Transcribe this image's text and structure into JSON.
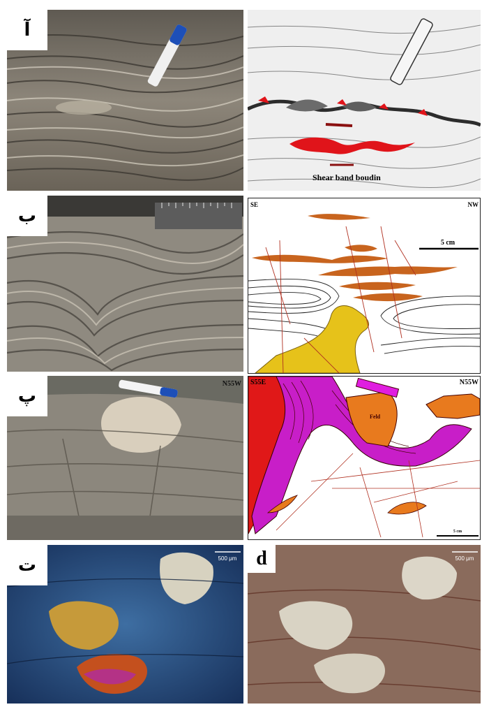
{
  "figure": {
    "rows": [
      {
        "label": "آ",
        "right_annotation": "Shear band boudin"
      },
      {
        "label": "ب",
        "orientation_left": "SE",
        "orientation_right": "NW",
        "scale": "5 cm"
      },
      {
        "label": "پ",
        "photo_orientation": "N55W",
        "orientation_left": "S55E",
        "orientation_right": "N55W",
        "mineral_label": "Feld",
        "scale": "5 cm"
      },
      {
        "label": "ت",
        "photo_scale": "500 μm",
        "right_label": "d",
        "right_scale": "500 μm"
      }
    ]
  },
  "colors": {
    "boudin_red": "#e0141a",
    "vein_orange": "#c8641e",
    "granite_yellow": "#e6c21a",
    "magenta_layer": "#c81ec8",
    "red_block": "#e01818",
    "orange_block": "#e87a1e",
    "fracture_line": "#b03020"
  }
}
